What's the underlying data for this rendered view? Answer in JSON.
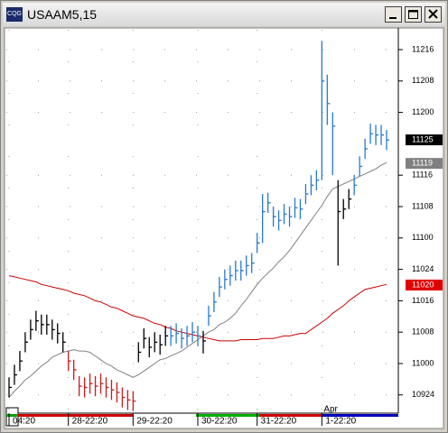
{
  "window_title": "USAAM5,15",
  "icon_label": "CQG",
  "chart_data": {
    "type": "ohlc",
    "categories": [
      "04:20",
      null,
      null,
      null,
      null,
      null,
      null,
      null,
      null,
      null,
      null,
      "28-22:20",
      null,
      null,
      null,
      null,
      null,
      null,
      null,
      null,
      null,
      null,
      null,
      "29-22:20",
      null,
      null,
      null,
      null,
      null,
      null,
      null,
      null,
      null,
      null,
      null,
      "30-22:20",
      null,
      null,
      null,
      null,
      null,
      null,
      null,
      null,
      null,
      null,
      "31-22:20",
      null,
      null,
      null,
      null,
      null,
      null,
      null,
      null,
      null,
      null,
      null,
      "1-22:20",
      null,
      null,
      null,
      null,
      null,
      null,
      null,
      null,
      null,
      null,
      null,
      null
    ],
    "annotation": "Apr",
    "high": [
      109.89,
      109.99,
      110.1,
      110.25,
      110.35,
      110.42,
      110.39,
      110.39,
      110.35,
      110.32,
      110.25,
      110.1,
      110.03,
      109.9,
      109.89,
      109.92,
      109.9,
      109.92,
      109.89,
      109.87,
      109.85,
      109.81,
      109.79,
      109.78,
      110.17,
      110.28,
      110.21,
      110.25,
      110.23,
      110.3,
      110.3,
      110.32,
      110.28,
      110.3,
      110.33,
      110.3,
      110.26,
      110.46,
      110.57,
      110.69,
      110.75,
      110.78,
      110.82,
      110.82,
      110.86,
      110.88,
      111.04,
      111.35,
      111.36,
      111.25,
      111.22,
      111.27,
      111.25,
      111.32,
      111.31,
      111.43,
      111.5,
      111.54,
      112.57,
      112.3,
      112.0,
      111.46,
      111.31,
      111.39,
      111.5,
      111.65,
      111.79,
      111.91,
      111.9,
      111.9,
      111.86
    ],
    "low": [
      109.73,
      109.83,
      109.94,
      110.09,
      110.19,
      110.26,
      110.23,
      110.23,
      110.19,
      110.16,
      110.09,
      109.94,
      109.87,
      109.74,
      109.73,
      109.76,
      109.74,
      109.76,
      109.73,
      109.71,
      109.69,
      109.65,
      109.63,
      109.62,
      110.01,
      110.12,
      110.05,
      110.09,
      110.07,
      110.14,
      110.14,
      110.16,
      110.12,
      110.14,
      110.17,
      110.14,
      110.08,
      110.3,
      110.41,
      110.53,
      110.59,
      110.62,
      110.66,
      110.66,
      110.7,
      110.72,
      110.88,
      110.96,
      111.2,
      111.09,
      111.06,
      111.11,
      111.09,
      111.16,
      111.15,
      111.27,
      111.34,
      111.38,
      111.46,
      111.9,
      111.5,
      110.78,
      111.15,
      111.23,
      111.34,
      111.49,
      111.63,
      111.75,
      111.74,
      111.74,
      111.7
    ],
    "close": [
      109.81,
      109.91,
      110.02,
      110.17,
      110.27,
      110.34,
      110.31,
      110.31,
      110.27,
      110.24,
      110.17,
      110.02,
      109.95,
      109.82,
      109.81,
      109.84,
      109.82,
      109.84,
      109.81,
      109.79,
      109.77,
      109.73,
      109.71,
      109.7,
      110.09,
      110.2,
      110.13,
      110.17,
      110.15,
      110.22,
      110.22,
      110.24,
      110.2,
      110.22,
      110.25,
      110.22,
      110.18,
      110.38,
      110.49,
      110.61,
      110.67,
      110.7,
      110.74,
      110.74,
      110.78,
      110.8,
      110.96,
      111.21,
      111.28,
      111.17,
      111.14,
      111.19,
      111.17,
      111.24,
      111.23,
      111.35,
      111.42,
      111.46,
      112.25,
      112.07,
      111.89,
      111.21,
      111.23,
      111.31,
      111.42,
      111.57,
      111.71,
      111.83,
      111.82,
      111.82,
      111.78
    ],
    "colors": [
      "#000000",
      "#000000",
      "#000000",
      "#000000",
      "#000000",
      "#000000",
      "#000000",
      "#000000",
      "#000000",
      "#000000",
      "#000000",
      "#cc1a1a",
      "#cc1a1a",
      "#cc1a1a",
      "#cc1a1a",
      "#cc1a1a",
      "#cc1a1a",
      "#cc1a1a",
      "#cc1a1a",
      "#cc1a1a",
      "#cc1a1a",
      "#cc1a1a",
      "#cc1a1a",
      "#cc1a1a",
      "#000000",
      "#000000",
      "#000000",
      "#000000",
      "#000000",
      "#000000",
      "#2878d0",
      "#2878d0",
      "#2878d0",
      "#2878d0",
      "#2878d0",
      "#2878d0",
      "#000000",
      "#2878d0",
      "#2878d0",
      "#2878d0",
      "#2878d0",
      "#2878d0",
      "#2878d0",
      "#2878d0",
      "#2878d0",
      "#2878d0",
      "#2878d0",
      "#2878d0",
      "#2878d0",
      "#2878d0",
      "#2878d0",
      "#2878d0",
      "#2878d0",
      "#2878d0",
      "#2878d0",
      "#2878d0",
      "#2878d0",
      "#2878d0",
      "#2878d0",
      "#2878d0",
      "#2878d0",
      "#000000",
      "#000000",
      "#000000",
      "#2878d0",
      "#2878d0",
      "#2878d0",
      "#2878d0",
      "#2878d0",
      "#2878d0",
      "#2878d0"
    ],
    "lines": [
      {
        "color": "#808080",
        "values": [
          109.73,
          109.78,
          109.82,
          109.87,
          109.9,
          109.94,
          109.98,
          110.01,
          110.05,
          110.07,
          110.09,
          110.1,
          110.11,
          110.1,
          110.1,
          110.09,
          110.06,
          110.03,
          110.0,
          109.98,
          109.95,
          109.93,
          109.91,
          109.89,
          109.91,
          109.94,
          109.97,
          110.0,
          110.03,
          110.04,
          110.06,
          110.08,
          110.1,
          110.13,
          110.16,
          110.19,
          110.22,
          110.25,
          110.27,
          110.31,
          110.33,
          110.36,
          110.4,
          110.46,
          110.51,
          110.57,
          110.63,
          110.68,
          110.72,
          110.76,
          110.81,
          110.85,
          110.9,
          110.96,
          111.02,
          111.08,
          111.14,
          111.2,
          111.26,
          111.33,
          111.39,
          111.41,
          111.43,
          111.45,
          111.47,
          111.49,
          111.51,
          111.53,
          111.55,
          111.58,
          111.6
        ]
      },
      {
        "color": "#cc0000",
        "values": [
          110.7,
          110.69,
          110.68,
          110.67,
          110.66,
          110.65,
          110.63,
          110.62,
          110.61,
          110.6,
          110.59,
          110.58,
          110.56,
          110.55,
          110.54,
          110.52,
          110.5,
          110.49,
          110.47,
          110.45,
          110.44,
          110.42,
          110.4,
          110.38,
          110.37,
          110.36,
          110.34,
          110.32,
          110.31,
          110.29,
          110.28,
          110.26,
          110.25,
          110.24,
          110.23,
          110.22,
          110.21,
          110.2,
          110.19,
          110.18,
          110.18,
          110.18,
          110.18,
          110.19,
          110.19,
          110.19,
          110.19,
          110.2,
          110.2,
          110.2,
          110.21,
          110.22,
          110.22,
          110.23,
          110.24,
          110.24,
          110.27,
          110.3,
          110.33,
          110.36,
          110.4,
          110.43,
          110.46,
          110.5,
          110.53,
          110.56,
          110.59,
          110.6,
          110.61,
          110.62,
          110.63
        ]
      }
    ],
    "ylim": [
      109.612,
      112.658
    ],
    "yticks": [
      {
        "value": 109.75,
        "label": "10924"
      },
      {
        "value": 110.0,
        "label": "11000"
      },
      {
        "value": 110.25,
        "label": "11008"
      },
      {
        "value": 110.5,
        "label": "11016"
      },
      {
        "value": 110.75,
        "label": "11024"
      },
      {
        "value": 111.0,
        "label": "11100"
      },
      {
        "value": 111.25,
        "label": "11108"
      },
      {
        "value": 111.5,
        "label": "11116"
      },
      {
        "value": 112.0,
        "label": "11200"
      },
      {
        "value": 112.25,
        "label": "11208"
      },
      {
        "value": 112.5,
        "label": "11216"
      }
    ],
    "price_tags": [
      {
        "value": 111.78125,
        "label": "11125",
        "color": "#000000"
      },
      {
        "value": 111.59375,
        "label": "11119",
        "color": "#808080"
      },
      {
        "value": 110.625,
        "label": "11020",
        "color": "#e00000"
      }
    ],
    "grid": true
  }
}
